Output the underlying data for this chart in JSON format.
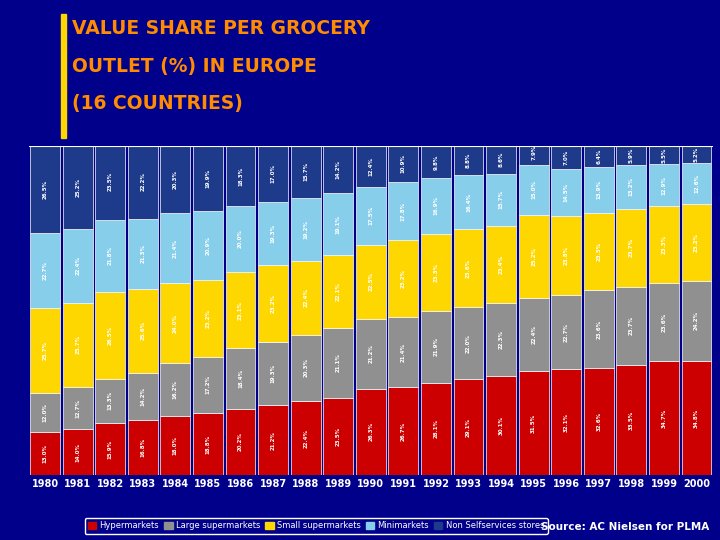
{
  "title_line1": "VALUE SHARE PER GROCERY",
  "title_line2": "OUTLET (%) IN EUROPE",
  "title_line3": "(16 COUNTRIES)",
  "title_color": "#FF8C00",
  "bg_color": "#00008B",
  "source_text": "Source: AC Nielsen for PLMA",
  "years": [
    1980,
    1981,
    1982,
    1983,
    1984,
    1985,
    1986,
    1987,
    1988,
    1989,
    1990,
    1991,
    1992,
    1993,
    1994,
    1995,
    1996,
    1997,
    1998,
    1999,
    2000
  ],
  "categories": [
    "Hypermarkets",
    "Large supermarkets",
    "Small supermarkets",
    "Minimarkets",
    "Non Selfservices stores"
  ],
  "colors": [
    "#CC0000",
    "#909090",
    "#FFD700",
    "#87CEEB",
    "#1E3A8A"
  ],
  "data": {
    "Hypermarkets": [
      13.0,
      14.0,
      15.9,
      16.8,
      18.0,
      18.8,
      20.2,
      21.2,
      22.4,
      23.5,
      26.3,
      26.7,
      28.1,
      29.1,
      30.1,
      31.5,
      32.1,
      32.6,
      33.5,
      34.7,
      34.8
    ],
    "Large supermarkets": [
      12.0,
      12.7,
      13.3,
      14.2,
      16.2,
      17.2,
      18.4,
      19.3,
      20.3,
      21.1,
      21.2,
      21.4,
      21.9,
      22.0,
      22.3,
      22.4,
      22.7,
      23.6,
      23.7,
      23.6,
      24.2
    ],
    "Small supermarkets": [
      25.7,
      25.7,
      26.5,
      25.6,
      24.0,
      23.2,
      23.1,
      23.2,
      22.4,
      22.1,
      22.5,
      23.2,
      23.3,
      23.6,
      23.4,
      25.2,
      23.8,
      23.5,
      23.7,
      23.3,
      23.2
    ],
    "Minimarkets": [
      22.7,
      22.4,
      21.8,
      21.3,
      21.4,
      20.9,
      20.0,
      19.3,
      19.2,
      19.1,
      17.5,
      17.8,
      16.9,
      16.4,
      15.7,
      15.0,
      14.5,
      13.9,
      13.2,
      12.9,
      12.6
    ],
    "Non Selfservices stores": [
      26.5,
      25.2,
      23.5,
      22.2,
      20.3,
      19.9,
      18.3,
      17.0,
      15.7,
      14.2,
      12.4,
      10.9,
      9.8,
      8.8,
      8.6,
      7.9,
      7.0,
      6.4,
      5.9,
      5.5,
      5.2
    ]
  }
}
